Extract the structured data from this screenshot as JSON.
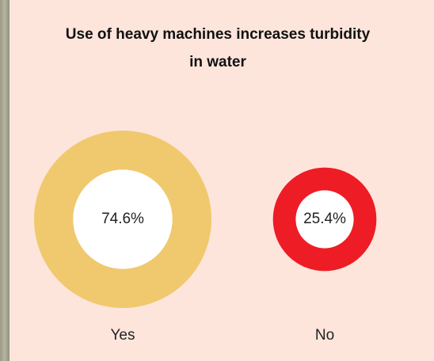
{
  "chart_data": {
    "type": "bubble",
    "title": "Use of heavy machines increases turbidity in water",
    "categories": [
      "Yes",
      "No"
    ],
    "values": [
      74.6,
      25.4
    ],
    "value_labels": [
      "74.6%",
      "25.4%"
    ],
    "colors": [
      "#f0c96e",
      "#ee1c25"
    ]
  }
}
